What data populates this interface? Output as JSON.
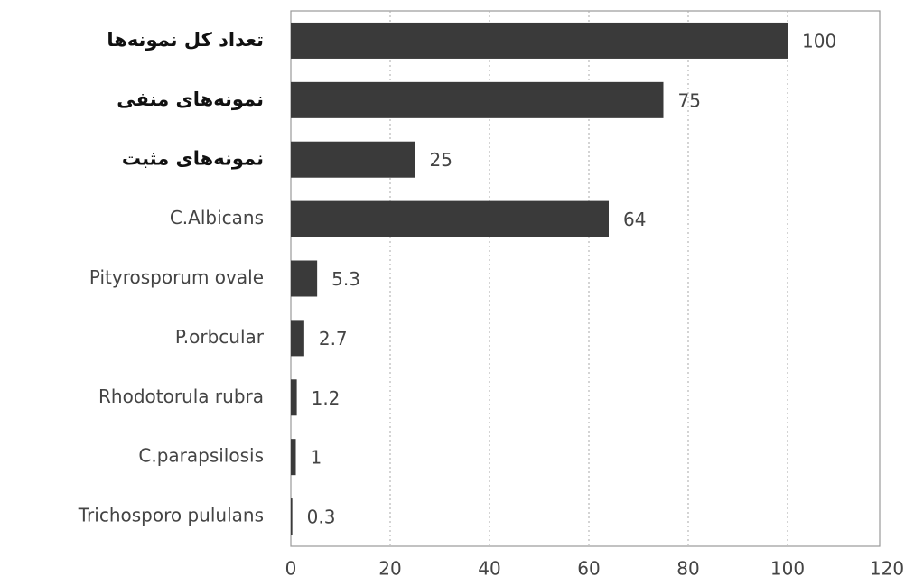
{
  "chart_data": {
    "type": "bar",
    "orientation": "horizontal",
    "categories": [
      "تعداد کل نمونه‌ها",
      "نمونه‌های منفی",
      "نمونه‌های مثبت",
      "C.Albicans",
      "Pityrosporum ovale",
      "P.orbcular",
      "Rhodotorula rubra",
      "C.parapsilosis",
      "Trichosporo pululans"
    ],
    "values": [
      100,
      75,
      25,
      64,
      5.3,
      2.7,
      1.2,
      1,
      0.3
    ],
    "color": "#3a3a3a",
    "xlim": [
      0,
      120
    ],
    "xticks": [
      0,
      20,
      40,
      60,
      80,
      100,
      120
    ],
    "grid": true
  }
}
